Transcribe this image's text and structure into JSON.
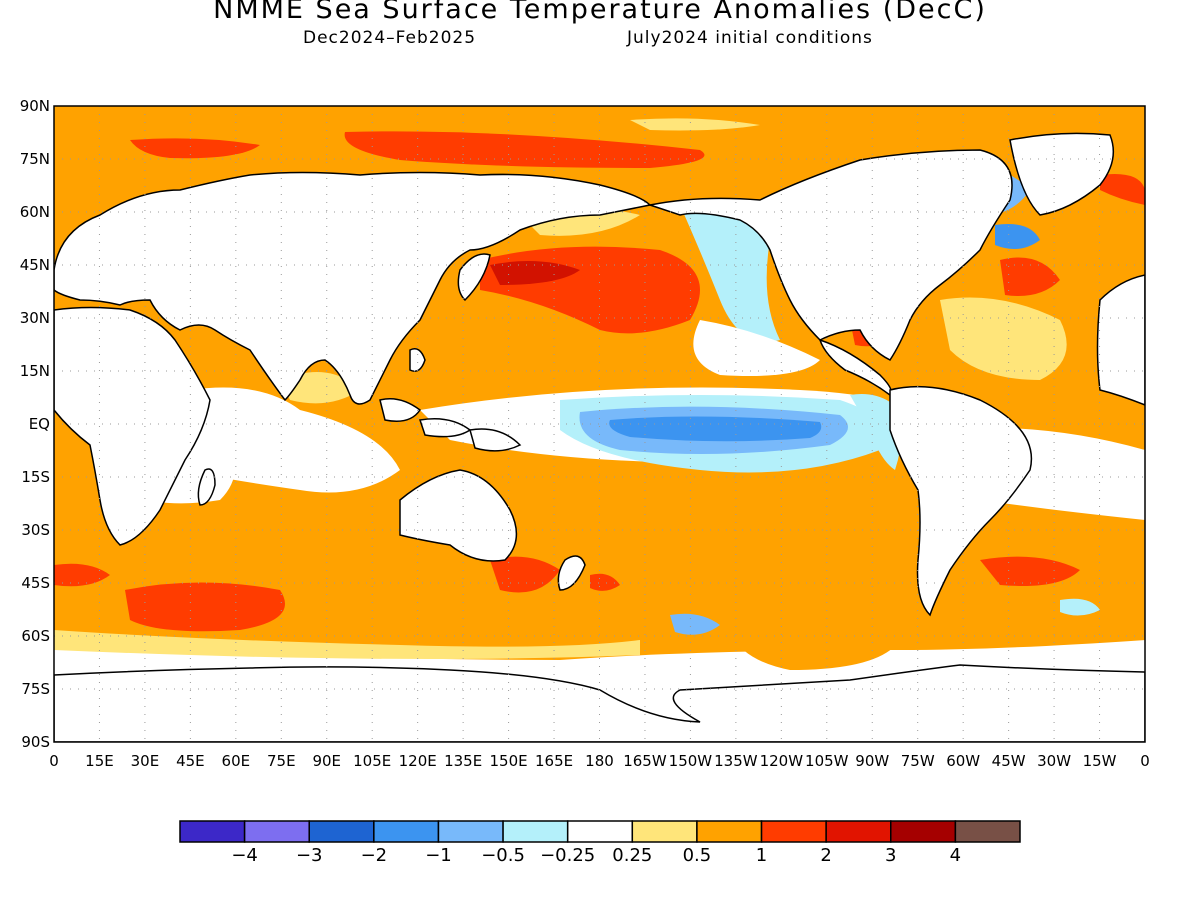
{
  "header": {
    "title": "NMME Sea Surface Temperature Anomalies (DecC)",
    "period": "Dec2024–Feb2025",
    "init": "July2024 initial conditions"
  },
  "map": {
    "lat_labels": [
      "90N",
      "75N",
      "60N",
      "45N",
      "30N",
      "15N",
      "EQ",
      "15S",
      "30S",
      "45S",
      "60S",
      "75S",
      "90S"
    ],
    "lon_labels": [
      "0",
      "15E",
      "30E",
      "45E",
      "60E",
      "75E",
      "90E",
      "105E",
      "120E",
      "135E",
      "150E",
      "165E",
      "180",
      "165W",
      "150W",
      "135W",
      "120W",
      "105W",
      "90W",
      "75W",
      "60W",
      "45W",
      "30W",
      "15W",
      "0"
    ],
    "colors": {
      "land": "#ffffff",
      "coast": "#000000",
      "warm_light": "#ffe57a",
      "warm": "#ffa200",
      "warm_strong": "#ff3c00",
      "warm_extreme": "#d21200",
      "cool_light": "#b4f0fa",
      "cool": "#78b9fa",
      "cool_strong": "#3c94f0"
    }
  },
  "colorbar": {
    "colors": [
      "#3c28c8",
      "#7d6ef0",
      "#1e64d2",
      "#3c94f0",
      "#78b9fa",
      "#b4f0fa",
      "#ffffff",
      "#ffe57a",
      "#ffa200",
      "#ff3c00",
      "#e11400",
      "#a50000",
      "#785046"
    ],
    "labels": [
      "−4",
      "−3",
      "−2",
      "−1",
      "−0.5",
      "−0.25",
      "0.25",
      "0.5",
      "1",
      "2",
      "3",
      "4"
    ]
  }
}
